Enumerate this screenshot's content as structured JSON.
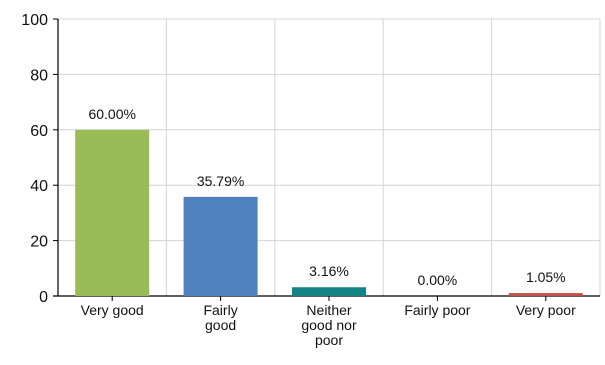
{
  "chart_data": {
    "type": "bar",
    "categories": [
      "Very good",
      "Fairly good",
      "Neither good nor poor",
      "Fairly poor",
      "Very poor"
    ],
    "category_lines": [
      [
        "Very good"
      ],
      [
        "Fairly",
        "good"
      ],
      [
        "Neither",
        "good nor",
        "poor"
      ],
      [
        "Fairly poor"
      ],
      [
        "Very poor"
      ]
    ],
    "values": [
      60.0,
      35.79,
      3.16,
      0.0,
      1.05
    ],
    "data_labels": [
      "60.00%",
      "35.79%",
      "3.16%",
      "0.00%",
      "1.05%"
    ],
    "colors": [
      "#9BBB59",
      "#4F81BD",
      "#138383",
      "#C0C0C0",
      "#C0504D"
    ],
    "ylim": [
      0,
      100
    ],
    "yticks": [
      0,
      20,
      40,
      60,
      80,
      100
    ],
    "grid": true,
    "title": "",
    "xlabel": "",
    "ylabel": ""
  }
}
